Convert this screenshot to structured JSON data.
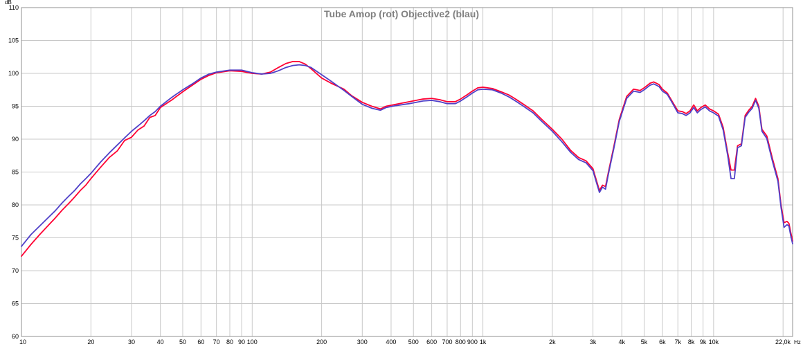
{
  "chart_data": {
    "type": "line",
    "title": "Tube Amop (rot) Objective2 (blau)",
    "ylabel": "dB",
    "xlabel": "Hz",
    "x_scale": "log",
    "xlim": [
      10,
      22000
    ],
    "ylim": [
      60,
      110
    ],
    "grid": true,
    "x_tick_labels": [
      {
        "value": 10,
        "label": "10"
      },
      {
        "value": 20,
        "label": "20"
      },
      {
        "value": 30,
        "label": "30"
      },
      {
        "value": 40,
        "label": "40"
      },
      {
        "value": 50,
        "label": "50"
      },
      {
        "value": 60,
        "label": "60"
      },
      {
        "value": 70,
        "label": "70"
      },
      {
        "value": 80,
        "label": "80"
      },
      {
        "value": 90,
        "label": "90"
      },
      {
        "value": 100,
        "label": "100"
      },
      {
        "value": 200,
        "label": "200"
      },
      {
        "value": 300,
        "label": "300"
      },
      {
        "value": 400,
        "label": "400"
      },
      {
        "value": 500,
        "label": "500"
      },
      {
        "value": 600,
        "label": "600"
      },
      {
        "value": 700,
        "label": "700"
      },
      {
        "value": 800,
        "label": "800"
      },
      {
        "value": 900,
        "label": "900"
      },
      {
        "value": 1000,
        "label": "1k"
      },
      {
        "value": 2000,
        "label": "2k"
      },
      {
        "value": 3000,
        "label": "3k"
      },
      {
        "value": 4000,
        "label": "4k"
      },
      {
        "value": 5000,
        "label": "5k"
      },
      {
        "value": 6000,
        "label": "6k"
      },
      {
        "value": 7000,
        "label": "7k"
      },
      {
        "value": 8000,
        "label": "8k"
      },
      {
        "value": 9000,
        "label": "9k"
      },
      {
        "value": 10000,
        "label": "10k"
      },
      {
        "value": 22000,
        "label": "22,0k"
      }
    ],
    "y_tick_labels": [
      {
        "value": 110,
        "label": "110"
      },
      {
        "value": 105,
        "label": "105"
      },
      {
        "value": 100,
        "label": "100"
      },
      {
        "value": 95,
        "label": "95"
      },
      {
        "value": 90,
        "label": "90"
      },
      {
        "value": 85,
        "label": "85"
      },
      {
        "value": 80,
        "label": "80"
      },
      {
        "value": 75,
        "label": "75"
      },
      {
        "value": 70,
        "label": "70"
      },
      {
        "value": 65,
        "label": "65"
      },
      {
        "value": 60,
        "label": "60"
      }
    ],
    "series": [
      {
        "color": "#ff0033",
        "points": [
          [
            10,
            72.2
          ],
          [
            11,
            74.0
          ],
          [
            12,
            75.5
          ],
          [
            13,
            76.8
          ],
          [
            14,
            78.0
          ],
          [
            15,
            79.2
          ],
          [
            16,
            80.2
          ],
          [
            17,
            81.2
          ],
          [
            18,
            82.2
          ],
          [
            19,
            83.0
          ],
          [
            20,
            84.0
          ],
          [
            22,
            85.7
          ],
          [
            24,
            87.2
          ],
          [
            26,
            88.2
          ],
          [
            28,
            89.8
          ],
          [
            30,
            90.3
          ],
          [
            32,
            91.4
          ],
          [
            34,
            92.0
          ],
          [
            36,
            93.3
          ],
          [
            38,
            93.6
          ],
          [
            40,
            94.8
          ],
          [
            45,
            96.0
          ],
          [
            50,
            97.2
          ],
          [
            55,
            98.2
          ],
          [
            60,
            99.1
          ],
          [
            65,
            99.7
          ],
          [
            70,
            100.1
          ],
          [
            80,
            100.4
          ],
          [
            90,
            100.3
          ],
          [
            100,
            100.0
          ],
          [
            110,
            99.9
          ],
          [
            120,
            100.2
          ],
          [
            130,
            100.9
          ],
          [
            140,
            101.5
          ],
          [
            150,
            101.8
          ],
          [
            160,
            101.8
          ],
          [
            170,
            101.4
          ],
          [
            180,
            100.7
          ],
          [
            200,
            99.3
          ],
          [
            220,
            98.5
          ],
          [
            250,
            97.6
          ],
          [
            270,
            96.6
          ],
          [
            300,
            95.6
          ],
          [
            330,
            95.0
          ],
          [
            360,
            94.6
          ],
          [
            380,
            95.0
          ],
          [
            420,
            95.3
          ],
          [
            480,
            95.7
          ],
          [
            550,
            96.1
          ],
          [
            600,
            96.2
          ],
          [
            650,
            96.0
          ],
          [
            700,
            95.7
          ],
          [
            760,
            95.7
          ],
          [
            800,
            96.1
          ],
          [
            850,
            96.7
          ],
          [
            900,
            97.3
          ],
          [
            950,
            97.8
          ],
          [
            1000,
            97.9
          ],
          [
            1100,
            97.7
          ],
          [
            1200,
            97.2
          ],
          [
            1300,
            96.7
          ],
          [
            1400,
            96.0
          ],
          [
            1500,
            95.3
          ],
          [
            1650,
            94.3
          ],
          [
            1800,
            93.0
          ],
          [
            2000,
            91.5
          ],
          [
            2200,
            90.0
          ],
          [
            2400,
            88.3
          ],
          [
            2600,
            87.2
          ],
          [
            2800,
            86.7
          ],
          [
            3000,
            85.5
          ],
          [
            3100,
            83.8
          ],
          [
            3200,
            82.2
          ],
          [
            3300,
            83.0
          ],
          [
            3400,
            82.8
          ],
          [
            3500,
            85.0
          ],
          [
            3700,
            89.0
          ],
          [
            3900,
            93.0
          ],
          [
            4200,
            96.5
          ],
          [
            4500,
            97.6
          ],
          [
            4800,
            97.4
          ],
          [
            5000,
            97.8
          ],
          [
            5300,
            98.5
          ],
          [
            5500,
            98.7
          ],
          [
            5800,
            98.3
          ],
          [
            6000,
            97.6
          ],
          [
            6300,
            97.0
          ],
          [
            6600,
            95.8
          ],
          [
            7000,
            94.3
          ],
          [
            7300,
            94.2
          ],
          [
            7600,
            93.9
          ],
          [
            7900,
            94.3
          ],
          [
            8200,
            95.2
          ],
          [
            8500,
            94.3
          ],
          [
            8800,
            94.8
          ],
          [
            9200,
            95.2
          ],
          [
            9600,
            94.6
          ],
          [
            10000,
            94.3
          ],
          [
            10500,
            93.8
          ],
          [
            11000,
            91.8
          ],
          [
            11500,
            88.0
          ],
          [
            11900,
            85.3
          ],
          [
            12300,
            85.3
          ],
          [
            12700,
            89.0
          ],
          [
            13200,
            89.3
          ],
          [
            13700,
            93.6
          ],
          [
            14200,
            94.4
          ],
          [
            14700,
            95.0
          ],
          [
            15200,
            96.2
          ],
          [
            15700,
            95.0
          ],
          [
            16200,
            91.5
          ],
          [
            17000,
            90.5
          ],
          [
            18000,
            87.0
          ],
          [
            19000,
            84.0
          ],
          [
            19600,
            80.0
          ],
          [
            20200,
            77.3
          ],
          [
            20800,
            77.5
          ],
          [
            21200,
            77.2
          ],
          [
            21600,
            75.8
          ],
          [
            22000,
            74.5
          ]
        ]
      },
      {
        "color": "#5040c8",
        "points": [
          [
            10,
            73.7
          ],
          [
            11,
            75.5
          ],
          [
            12,
            76.8
          ],
          [
            13,
            78.0
          ],
          [
            14,
            79.1
          ],
          [
            15,
            80.3
          ],
          [
            16,
            81.3
          ],
          [
            17,
            82.2
          ],
          [
            18,
            83.2
          ],
          [
            19,
            84.0
          ],
          [
            20,
            84.8
          ],
          [
            22,
            86.5
          ],
          [
            24,
            87.9
          ],
          [
            26,
            89.1
          ],
          [
            28,
            90.2
          ],
          [
            30,
            91.2
          ],
          [
            32,
            92.0
          ],
          [
            34,
            92.8
          ],
          [
            36,
            93.6
          ],
          [
            38,
            94.2
          ],
          [
            40,
            95.0
          ],
          [
            45,
            96.4
          ],
          [
            50,
            97.5
          ],
          [
            55,
            98.4
          ],
          [
            60,
            99.3
          ],
          [
            65,
            99.9
          ],
          [
            70,
            100.2
          ],
          [
            80,
            100.5
          ],
          [
            90,
            100.5
          ],
          [
            100,
            100.1
          ],
          [
            110,
            99.9
          ],
          [
            120,
            100.0
          ],
          [
            130,
            100.4
          ],
          [
            140,
            100.9
          ],
          [
            150,
            101.2
          ],
          [
            160,
            101.3
          ],
          [
            170,
            101.2
          ],
          [
            180,
            100.9
          ],
          [
            200,
            99.8
          ],
          [
            220,
            98.8
          ],
          [
            250,
            97.4
          ],
          [
            270,
            96.5
          ],
          [
            300,
            95.3
          ],
          [
            330,
            94.7
          ],
          [
            360,
            94.4
          ],
          [
            380,
            94.8
          ],
          [
            420,
            95.1
          ],
          [
            480,
            95.4
          ],
          [
            550,
            95.8
          ],
          [
            600,
            95.9
          ],
          [
            650,
            95.7
          ],
          [
            700,
            95.4
          ],
          [
            760,
            95.4
          ],
          [
            800,
            95.8
          ],
          [
            850,
            96.4
          ],
          [
            900,
            97.0
          ],
          [
            950,
            97.5
          ],
          [
            1000,
            97.6
          ],
          [
            1100,
            97.5
          ],
          [
            1200,
            97.0
          ],
          [
            1300,
            96.4
          ],
          [
            1400,
            95.7
          ],
          [
            1500,
            95.0
          ],
          [
            1650,
            94.0
          ],
          [
            1800,
            92.7
          ],
          [
            2000,
            91.2
          ],
          [
            2200,
            89.6
          ],
          [
            2400,
            88.0
          ],
          [
            2600,
            86.9
          ],
          [
            2800,
            86.4
          ],
          [
            3000,
            85.2
          ],
          [
            3100,
            83.5
          ],
          [
            3200,
            81.9
          ],
          [
            3300,
            82.7
          ],
          [
            3400,
            82.4
          ],
          [
            3500,
            84.7
          ],
          [
            3700,
            88.7
          ],
          [
            3900,
            92.7
          ],
          [
            4200,
            96.2
          ],
          [
            4500,
            97.3
          ],
          [
            4800,
            97.1
          ],
          [
            5000,
            97.5
          ],
          [
            5300,
            98.2
          ],
          [
            5500,
            98.4
          ],
          [
            5800,
            98.0
          ],
          [
            6000,
            97.3
          ],
          [
            6300,
            96.8
          ],
          [
            6600,
            95.6
          ],
          [
            7000,
            94.0
          ],
          [
            7300,
            93.9
          ],
          [
            7600,
            93.6
          ],
          [
            7900,
            94.0
          ],
          [
            8200,
            94.8
          ],
          [
            8500,
            94.0
          ],
          [
            8800,
            94.5
          ],
          [
            9200,
            94.9
          ],
          [
            9600,
            94.3
          ],
          [
            10000,
            94.0
          ],
          [
            10500,
            93.5
          ],
          [
            11000,
            91.4
          ],
          [
            11500,
            87.6
          ],
          [
            11900,
            84.0
          ],
          [
            12300,
            84.0
          ],
          [
            12700,
            88.7
          ],
          [
            13200,
            89.0
          ],
          [
            13700,
            93.3
          ],
          [
            14200,
            94.1
          ],
          [
            14700,
            94.7
          ],
          [
            15200,
            95.9
          ],
          [
            15700,
            94.7
          ],
          [
            16200,
            91.2
          ],
          [
            17000,
            90.1
          ],
          [
            18000,
            86.6
          ],
          [
            19000,
            83.6
          ],
          [
            19600,
            79.6
          ],
          [
            20200,
            76.6
          ],
          [
            20800,
            77.0
          ],
          [
            21200,
            76.8
          ],
          [
            21600,
            75.3
          ],
          [
            22000,
            74.1
          ]
        ]
      }
    ]
  }
}
